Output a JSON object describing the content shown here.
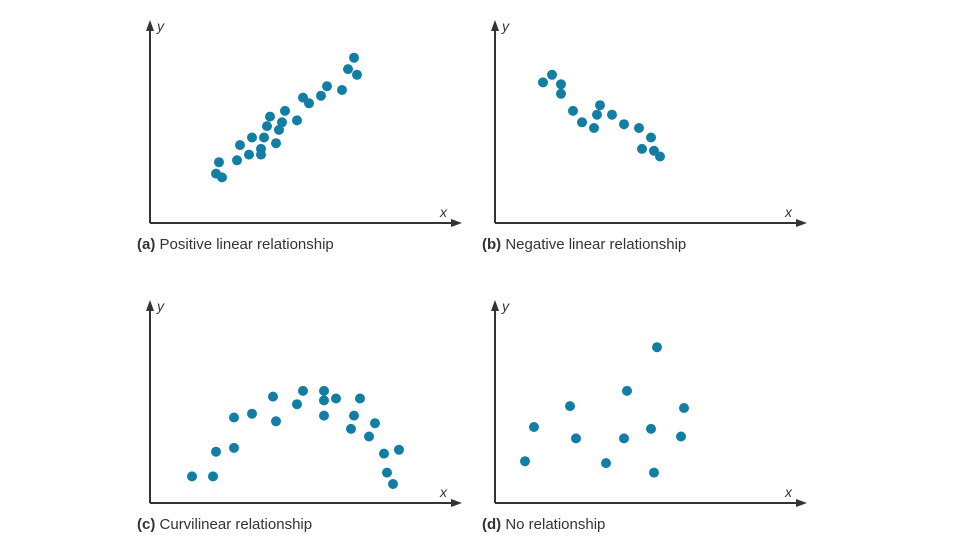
{
  "colors": {
    "point": "#127ea3",
    "axis": "#333333"
  },
  "chart_data": [
    {
      "type": "scatter",
      "label_letter": "(a)",
      "title": "Positive linear relationship",
      "xlabel": "x",
      "ylabel": "y",
      "xlim": [
        0,
        10
      ],
      "ylim": [
        0,
        10
      ],
      "grid": false,
      "points": [
        [
          2.2,
          2.6
        ],
        [
          2.3,
          3.2
        ],
        [
          2.4,
          2.4
        ],
        [
          2.9,
          3.3
        ],
        [
          3.0,
          4.1
        ],
        [
          3.3,
          3.6
        ],
        [
          3.4,
          4.5
        ],
        [
          3.7,
          3.9
        ],
        [
          3.7,
          3.6
        ],
        [
          3.8,
          4.5
        ],
        [
          3.9,
          5.1
        ],
        [
          4.0,
          5.6
        ],
        [
          4.2,
          4.2
        ],
        [
          4.3,
          4.9
        ],
        [
          4.4,
          5.3
        ],
        [
          4.5,
          5.9
        ],
        [
          4.9,
          5.4
        ],
        [
          5.1,
          6.6
        ],
        [
          5.3,
          6.3
        ],
        [
          5.7,
          6.7
        ],
        [
          5.9,
          7.2
        ],
        [
          6.4,
          7.0
        ],
        [
          6.6,
          8.1
        ],
        [
          6.8,
          8.7
        ],
        [
          6.9,
          7.8
        ]
      ]
    },
    {
      "type": "scatter",
      "label_letter": "(b)",
      "title": "Negative linear relationship",
      "xlabel": "x",
      "ylabel": "y",
      "xlim": [
        0,
        10
      ],
      "ylim": [
        0,
        10
      ],
      "grid": false,
      "points": [
        [
          1.6,
          7.4
        ],
        [
          1.9,
          7.8
        ],
        [
          2.2,
          7.3
        ],
        [
          2.2,
          6.8
        ],
        [
          2.6,
          5.9
        ],
        [
          2.9,
          5.3
        ],
        [
          3.3,
          5.0
        ],
        [
          3.4,
          5.7
        ],
        [
          3.5,
          6.2
        ],
        [
          3.9,
          5.7
        ],
        [
          4.3,
          5.2
        ],
        [
          4.8,
          5.0
        ],
        [
          5.2,
          4.5
        ],
        [
          4.9,
          3.9
        ],
        [
          5.3,
          3.8
        ],
        [
          5.5,
          3.5
        ]
      ]
    },
    {
      "type": "scatter",
      "label_letter": "(c)",
      "title": "Curvilinear relationship",
      "xlabel": "x",
      "ylabel": "y",
      "xlim": [
        0,
        10
      ],
      "ylim": [
        0,
        10
      ],
      "grid": false,
      "points": [
        [
          1.4,
          1.4
        ],
        [
          2.1,
          1.4
        ],
        [
          2.2,
          2.7
        ],
        [
          2.8,
          2.9
        ],
        [
          2.8,
          4.5
        ],
        [
          3.4,
          4.7
        ],
        [
          4.1,
          5.6
        ],
        [
          4.2,
          4.3
        ],
        [
          4.9,
          5.2
        ],
        [
          5.1,
          5.9
        ],
        [
          5.8,
          5.9
        ],
        [
          5.8,
          5.4
        ],
        [
          5.8,
          4.6
        ],
        [
          6.2,
          5.5
        ],
        [
          6.7,
          3.9
        ],
        [
          6.8,
          4.6
        ],
        [
          7.0,
          5.5
        ],
        [
          7.3,
          3.5
        ],
        [
          7.5,
          4.2
        ],
        [
          7.8,
          2.6
        ],
        [
          7.9,
          1.6
        ],
        [
          8.1,
          1.0
        ],
        [
          8.3,
          2.8
        ]
      ]
    },
    {
      "type": "scatter",
      "label_letter": "(d)",
      "title": "No relationship",
      "xlabel": "x",
      "ylabel": "y",
      "xlim": [
        0,
        10
      ],
      "ylim": [
        0,
        10
      ],
      "grid": false,
      "points": [
        [
          1.0,
          2.2
        ],
        [
          1.3,
          4.0
        ],
        [
          2.5,
          5.1
        ],
        [
          2.7,
          3.4
        ],
        [
          3.7,
          2.1
        ],
        [
          4.3,
          3.4
        ],
        [
          4.4,
          5.9
        ],
        [
          5.2,
          3.9
        ],
        [
          5.3,
          1.6
        ],
        [
          5.4,
          8.2
        ],
        [
          6.2,
          3.5
        ],
        [
          6.3,
          5.0
        ]
      ]
    }
  ]
}
